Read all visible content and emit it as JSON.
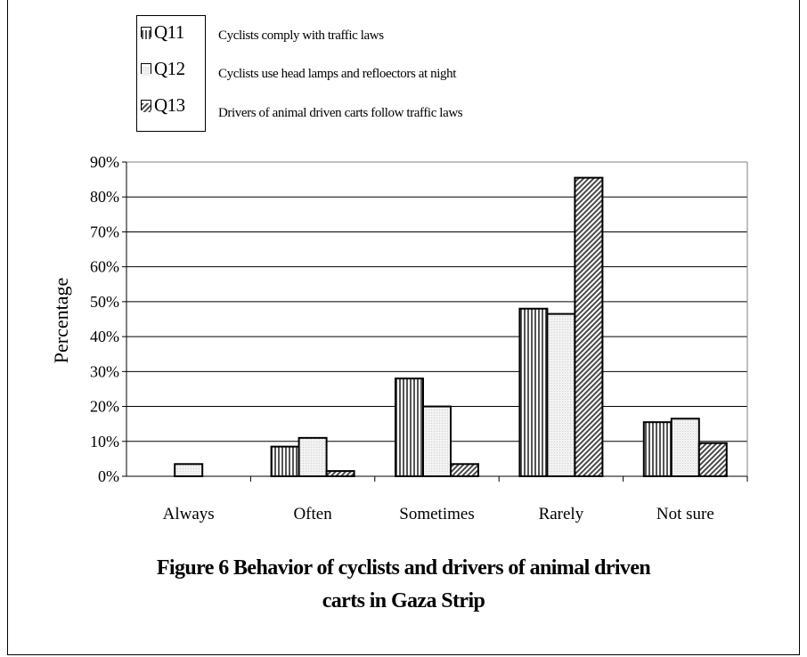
{
  "legend": {
    "items": [
      {
        "code": "Q11",
        "description": "Cyclists comply with traffic laws"
      },
      {
        "code": "Q12",
        "description": "Cyclists use head lamps and refloectors at night"
      },
      {
        "code": "Q13",
        "description": "Drivers of animal driven carts follow traffic laws"
      }
    ]
  },
  "caption": {
    "line1": "Figure 6 Behavior of cyclists and drivers of animal driven",
    "line2": "carts in Gaza Strip"
  },
  "chart_data": {
    "type": "bar",
    "categories": [
      "Always",
      "Often",
      "Sometimes",
      "Rarely",
      "Not sure"
    ],
    "series": [
      {
        "name": "Q11",
        "values": [
          0,
          8.5,
          28,
          48,
          15.5
        ]
      },
      {
        "name": "Q12",
        "values": [
          3.5,
          11,
          20,
          46.5,
          16.5
        ]
      },
      {
        "name": "Q13",
        "values": [
          0,
          1.5,
          3.5,
          85.5,
          9.5
        ]
      }
    ],
    "ylabel": "Percentage",
    "xlabel": "",
    "ylim": [
      0,
      90
    ],
    "yticks": [
      "0%",
      "10%",
      "20%",
      "30%",
      "40%",
      "50%",
      "60%",
      "70%",
      "80%",
      "90%"
    ],
    "grid": true,
    "legend_position": "top-left"
  }
}
